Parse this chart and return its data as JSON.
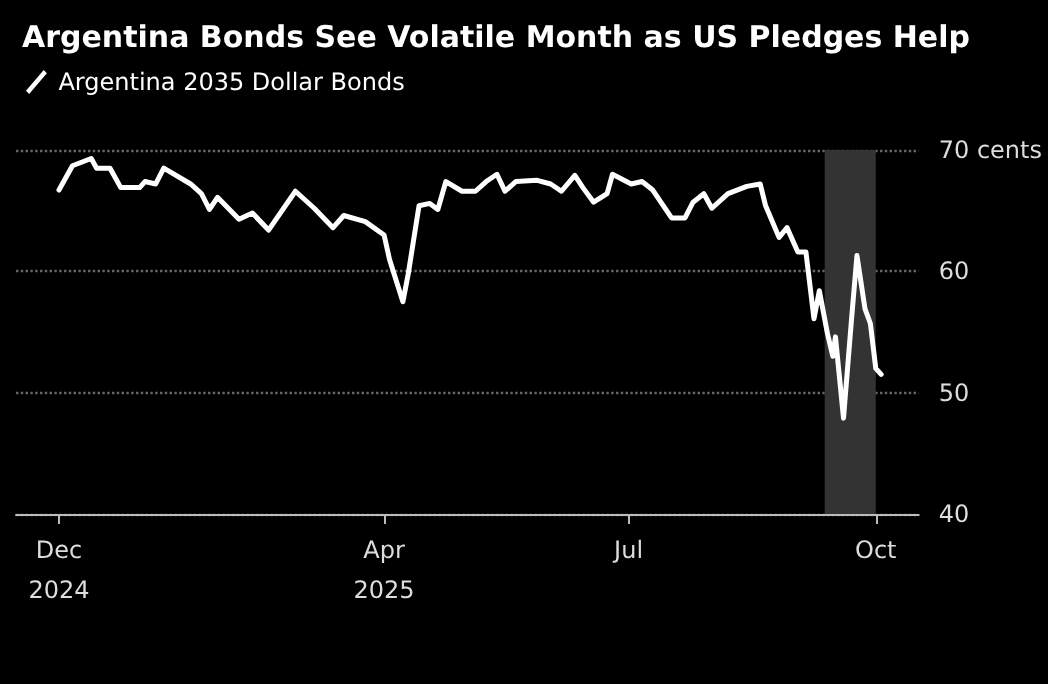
{
  "chart_data": {
    "type": "line",
    "title": "Argentina Bonds See Volatile Month as US Pledges Help",
    "x": [
      "2024-12-01",
      "2024-12-06",
      "2024-12-13",
      "2024-12-15",
      "2024-12-20",
      "2024-12-24",
      "2024-12-31",
      "2025-01-02",
      "2025-01-06",
      "2025-01-09",
      "2025-01-19",
      "2025-01-23",
      "2025-01-26",
      "2025-01-29",
      "2025-02-06",
      "2025-02-11",
      "2025-02-17",
      "2025-02-27",
      "2025-03-06",
      "2025-03-13",
      "2025-03-17",
      "2025-03-25",
      "2025-04-01",
      "2025-04-03",
      "2025-04-08",
      "2025-04-10",
      "2025-04-14",
      "2025-04-18",
      "2025-04-21",
      "2025-04-24",
      "2025-04-30",
      "2025-05-05",
      "2025-05-09",
      "2025-05-13",
      "2025-05-16",
      "2025-05-20",
      "2025-05-28",
      "2025-06-02",
      "2025-06-06",
      "2025-06-11",
      "2025-06-14",
      "2025-06-18",
      "2025-06-23",
      "2025-06-25",
      "2025-07-02",
      "2025-07-06",
      "2025-07-10",
      "2025-07-17",
      "2025-07-22",
      "2025-07-25",
      "2025-07-29",
      "2025-08-01",
      "2025-08-07",
      "2025-08-14",
      "2025-08-19",
      "2025-08-21",
      "2025-08-26",
      "2025-08-29",
      "2025-09-02",
      "2025-09-05",
      "2025-09-08",
      "2025-09-10",
      "2025-09-13",
      "2025-09-15",
      "2025-09-16",
      "2025-09-19",
      "2025-09-22",
      "2025-09-24",
      "2025-09-27",
      "2025-09-29",
      "2025-10-01",
      "2025-10-03"
    ],
    "series": [
      {
        "name": "Argentina 2035 Dollar Bonds",
        "color": "#ffffff",
        "values": [
          66.7,
          68.7,
          69.3,
          68.5,
          68.5,
          66.9,
          66.9,
          67.4,
          67.2,
          68.5,
          67.2,
          66.4,
          65.1,
          66.1,
          64.3,
          64.8,
          63.4,
          66.6,
          65.2,
          63.6,
          64.6,
          64.1,
          63.0,
          61.0,
          57.5,
          59.8,
          65.4,
          65.6,
          65.1,
          67.4,
          66.6,
          66.6,
          67.4,
          68.0,
          66.6,
          67.4,
          67.5,
          67.2,
          66.6,
          67.9,
          66.9,
          65.7,
          66.4,
          68.0,
          67.2,
          67.4,
          66.7,
          64.4,
          64.4,
          65.7,
          66.4,
          65.2,
          66.4,
          67.0,
          67.2,
          65.4,
          62.8,
          63.6,
          61.6,
          61.6,
          56.1,
          58.4,
          54.9,
          53.0,
          54.6,
          47.9,
          56.1,
          61.3,
          56.9,
          55.7,
          52.0,
          51.5
        ]
      }
    ],
    "xlim": [
      "2024-11-15",
      "2025-10-17"
    ],
    "xticks": [
      {
        "value": "2024-12-01",
        "label": "Dec\n2024"
      },
      {
        "value": "2025-04-01",
        "label": "Apr\n2025"
      },
      {
        "value": "2025-07-01",
        "label": "Jul"
      },
      {
        "value": "2025-10-01",
        "label": "Oct"
      }
    ],
    "ylim": [
      40,
      70
    ],
    "yticks": [
      40,
      50,
      60,
      {
        "value": 70,
        "label": "70 cents"
      }
    ],
    "bands": [
      {
        "axis": "x",
        "from": "2025-09-12",
        "to": "2025-10-01",
        "color": "#333333"
      }
    ],
    "grid": "y",
    "legend": "top left",
    "marker": "none",
    "line_style": "solid"
  }
}
